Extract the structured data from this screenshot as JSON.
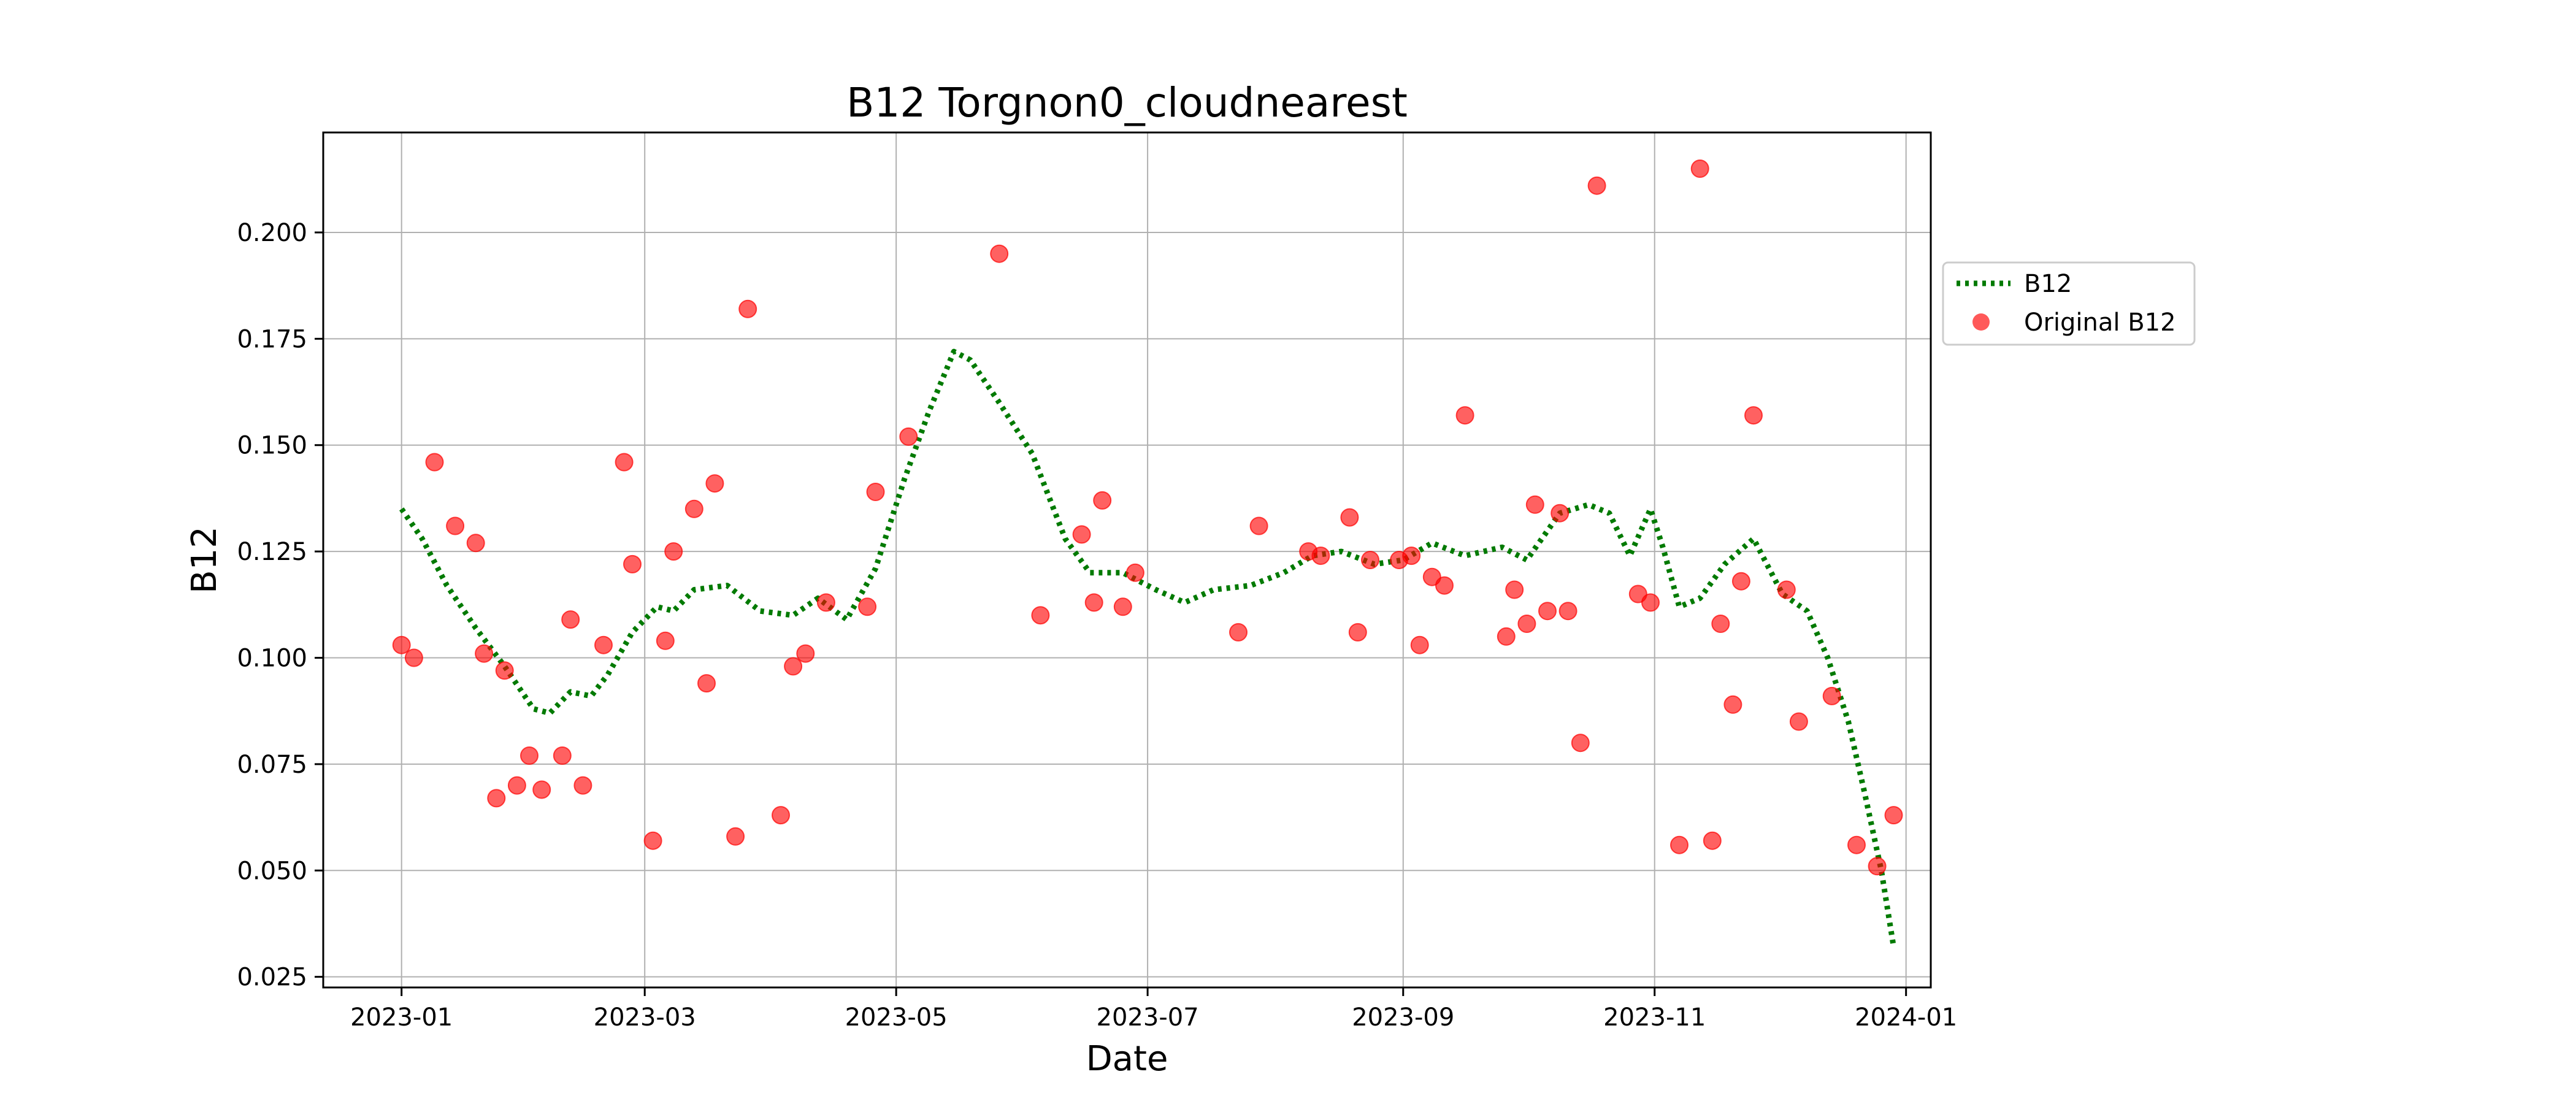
{
  "chart_data": {
    "type": "scatter",
    "title": "B12 Torgnon0_cloudnearest",
    "xlabel": "Date",
    "ylabel": "B12",
    "xlim": [
      "2022-12-13",
      "2024-01-07"
    ],
    "ylim": [
      0.0225,
      0.2235
    ],
    "x_ticks": [
      "2023-01",
      "2023-03",
      "2023-05",
      "2023-07",
      "2023-09",
      "2023-11",
      "2024-01"
    ],
    "y_ticks": [
      "0.025",
      "0.050",
      "0.075",
      "0.100",
      "0.125",
      "0.150",
      "0.175",
      "0.200"
    ],
    "grid": true,
    "legend_position": "outside-right",
    "series": [
      {
        "name": "B12",
        "style": "dotted-line",
        "color": "#007a00",
        "points": [
          [
            "2023-01-01",
            0.135
          ],
          [
            "2023-01-06",
            0.128
          ],
          [
            "2023-01-12",
            0.117
          ],
          [
            "2023-01-19",
            0.107
          ],
          [
            "2023-01-26",
            0.098
          ],
          [
            "2023-02-02",
            0.088
          ],
          [
            "2023-02-06",
            0.087
          ],
          [
            "2023-02-11",
            0.092
          ],
          [
            "2023-02-16",
            0.091
          ],
          [
            "2023-02-20",
            0.096
          ],
          [
            "2023-02-26",
            0.106
          ],
          [
            "2023-03-04",
            0.112
          ],
          [
            "2023-03-08",
            0.111
          ],
          [
            "2023-03-13",
            0.116
          ],
          [
            "2023-03-21",
            0.117
          ],
          [
            "2023-03-29",
            0.111
          ],
          [
            "2023-04-06",
            0.11
          ],
          [
            "2023-04-12",
            0.114
          ],
          [
            "2023-04-19",
            0.109
          ],
          [
            "2023-04-26",
            0.121
          ],
          [
            "2023-05-03",
            0.142
          ],
          [
            "2023-05-09",
            0.158
          ],
          [
            "2023-05-15",
            0.172
          ],
          [
            "2023-05-19",
            0.17
          ],
          [
            "2023-05-26",
            0.16
          ],
          [
            "2023-06-03",
            0.148
          ],
          [
            "2023-06-11",
            0.128
          ],
          [
            "2023-06-17",
            0.12
          ],
          [
            "2023-06-25",
            0.12
          ],
          [
            "2023-07-03",
            0.116
          ],
          [
            "2023-07-10",
            0.113
          ],
          [
            "2023-07-17",
            0.116
          ],
          [
            "2023-07-26",
            0.117
          ],
          [
            "2023-08-03",
            0.12
          ],
          [
            "2023-08-10",
            0.124
          ],
          [
            "2023-08-17",
            0.125
          ],
          [
            "2023-08-25",
            0.122
          ],
          [
            "2023-09-01",
            0.123
          ],
          [
            "2023-09-08",
            0.127
          ],
          [
            "2023-09-16",
            0.124
          ],
          [
            "2023-09-25",
            0.126
          ],
          [
            "2023-10-01",
            0.123
          ],
          [
            "2023-10-09",
            0.134
          ],
          [
            "2023-10-16",
            0.136
          ],
          [
            "2023-10-21",
            0.134
          ],
          [
            "2023-10-26",
            0.124
          ],
          [
            "2023-10-31",
            0.135
          ],
          [
            "2023-11-03",
            0.126
          ],
          [
            "2023-11-07",
            0.112
          ],
          [
            "2023-11-12",
            0.114
          ],
          [
            "2023-11-18",
            0.122
          ],
          [
            "2023-11-25",
            0.128
          ],
          [
            "2023-12-02",
            0.115
          ],
          [
            "2023-12-08",
            0.111
          ],
          [
            "2023-12-13",
            0.1
          ],
          [
            "2023-12-18",
            0.085
          ],
          [
            "2023-12-22",
            0.068
          ],
          [
            "2023-12-26",
            0.05
          ],
          [
            "2023-12-29",
            0.032
          ]
        ]
      },
      {
        "name": "Original B12",
        "style": "markers",
        "color": "#ff0000",
        "points": [
          [
            "2023-01-01",
            0.103
          ],
          [
            "2023-01-04",
            0.1
          ],
          [
            "2023-01-09",
            0.146
          ],
          [
            "2023-01-14",
            0.131
          ],
          [
            "2023-01-19",
            0.127
          ],
          [
            "2023-01-21",
            0.101
          ],
          [
            "2023-01-24",
            0.067
          ],
          [
            "2023-01-26",
            0.097
          ],
          [
            "2023-01-29",
            0.07
          ],
          [
            "2023-02-01",
            0.077
          ],
          [
            "2023-02-04",
            0.069
          ],
          [
            "2023-02-09",
            0.077
          ],
          [
            "2023-02-11",
            0.109
          ],
          [
            "2023-02-14",
            0.07
          ],
          [
            "2023-02-19",
            0.103
          ],
          [
            "2023-02-24",
            0.146
          ],
          [
            "2023-02-26",
            0.122
          ],
          [
            "2023-03-03",
            0.057
          ],
          [
            "2023-03-06",
            0.104
          ],
          [
            "2023-03-08",
            0.125
          ],
          [
            "2023-03-13",
            0.135
          ],
          [
            "2023-03-16",
            0.094
          ],
          [
            "2023-03-18",
            0.141
          ],
          [
            "2023-03-23",
            0.058
          ],
          [
            "2023-03-26",
            0.182
          ],
          [
            "2023-04-03",
            0.063
          ],
          [
            "2023-04-06",
            0.098
          ],
          [
            "2023-04-09",
            0.101
          ],
          [
            "2023-04-14",
            0.113
          ],
          [
            "2023-04-24",
            0.112
          ],
          [
            "2023-04-26",
            0.139
          ],
          [
            "2023-05-04",
            0.152
          ],
          [
            "2023-05-26",
            0.195
          ],
          [
            "2023-06-05",
            0.11
          ],
          [
            "2023-06-15",
            0.129
          ],
          [
            "2023-06-18",
            0.113
          ],
          [
            "2023-06-20",
            0.137
          ],
          [
            "2023-06-25",
            0.112
          ],
          [
            "2023-06-28",
            0.12
          ],
          [
            "2023-07-23",
            0.106
          ],
          [
            "2023-07-28",
            0.131
          ],
          [
            "2023-08-09",
            0.125
          ],
          [
            "2023-08-12",
            0.124
          ],
          [
            "2023-08-19",
            0.133
          ],
          [
            "2023-08-21",
            0.106
          ],
          [
            "2023-08-24",
            0.123
          ],
          [
            "2023-08-31",
            0.123
          ],
          [
            "2023-09-03",
            0.124
          ],
          [
            "2023-09-05",
            0.103
          ],
          [
            "2023-09-08",
            0.119
          ],
          [
            "2023-09-11",
            0.117
          ],
          [
            "2023-09-16",
            0.157
          ],
          [
            "2023-09-26",
            0.105
          ],
          [
            "2023-09-28",
            0.116
          ],
          [
            "2023-10-01",
            0.108
          ],
          [
            "2023-10-03",
            0.136
          ],
          [
            "2023-10-06",
            0.111
          ],
          [
            "2023-10-09",
            0.134
          ],
          [
            "2023-10-11",
            0.111
          ],
          [
            "2023-10-14",
            0.08
          ],
          [
            "2023-10-18",
            0.211
          ],
          [
            "2023-10-28",
            0.115
          ],
          [
            "2023-10-31",
            0.113
          ],
          [
            "2023-11-07",
            0.056
          ],
          [
            "2023-11-12",
            0.215
          ],
          [
            "2023-11-15",
            0.057
          ],
          [
            "2023-11-17",
            0.108
          ],
          [
            "2023-11-20",
            0.089
          ],
          [
            "2023-11-22",
            0.118
          ],
          [
            "2023-11-25",
            0.157
          ],
          [
            "2023-12-03",
            0.116
          ],
          [
            "2023-12-06",
            0.085
          ],
          [
            "2023-12-14",
            0.091
          ],
          [
            "2023-12-20",
            0.056
          ],
          [
            "2023-12-25",
            0.051
          ],
          [
            "2023-12-29",
            0.063
          ]
        ]
      }
    ]
  }
}
